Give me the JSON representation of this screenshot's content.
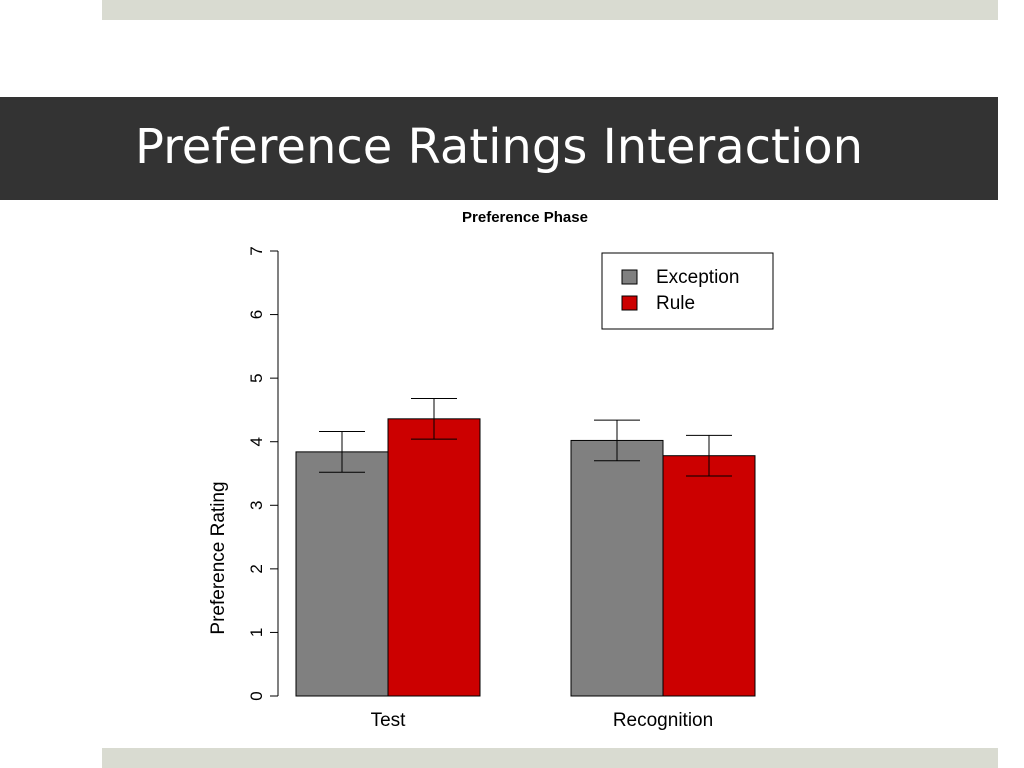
{
  "slide": {
    "title": "Preference Ratings Interaction"
  },
  "colors": {
    "title_bar": "#333333",
    "strip": "#d9dbd1"
  },
  "chart_data": {
    "type": "bar",
    "title": "Preference Phase",
    "ylabel": "Preference Rating",
    "xlabel": "",
    "ylim": [
      0,
      7
    ],
    "yticks": [
      0,
      1,
      2,
      3,
      4,
      5,
      6,
      7
    ],
    "categories": [
      "Test",
      "Recognition"
    ],
    "series": [
      {
        "name": "Exception",
        "color": "#808080",
        "values": [
          3.84,
          4.02
        ],
        "error_low": [
          3.52,
          3.7
        ],
        "error_high": [
          4.16,
          4.34
        ]
      },
      {
        "name": "Rule",
        "color": "#cc0000",
        "values": [
          4.36,
          3.78
        ],
        "error_low": [
          4.04,
          3.46
        ],
        "error_high": [
          4.68,
          4.1
        ]
      }
    ],
    "legend": {
      "position": "top-right"
    },
    "grid": false
  }
}
